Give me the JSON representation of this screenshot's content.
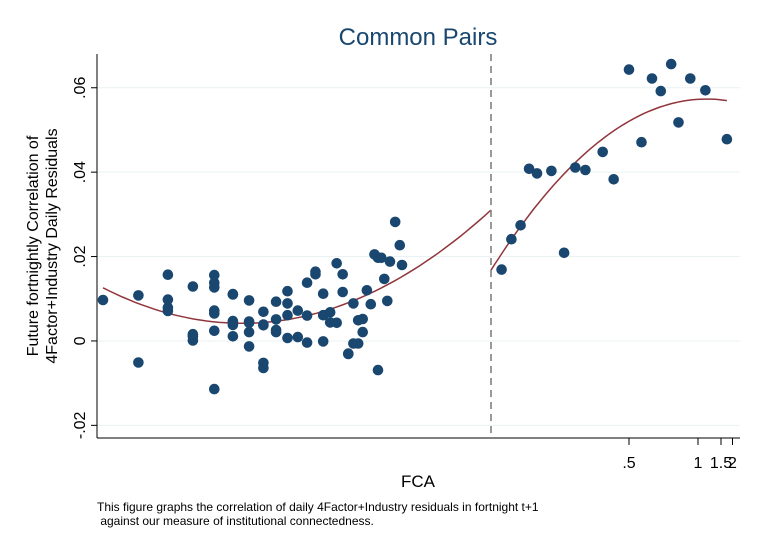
{
  "chart_data": {
    "type": "scatter",
    "title": "Common Pairs",
    "xlabel": "FCA",
    "ylabel_lines": [
      "Future fortnightly Correlation of",
      "4Factor+Industry Daily Residuals"
    ],
    "y_ticks": [
      -0.02,
      0,
      0.02,
      0.04,
      0.06
    ],
    "y_tick_labels": [
      "-.02",
      "0",
      ".02",
      ".04",
      ".06"
    ],
    "ylim": [
      -0.023,
      0.068
    ],
    "x_scale": "reciprocal",
    "x_ticks": [
      0.5,
      1,
      1.5,
      2
    ],
    "x_tick_labels": [
      ".5",
      "1",
      "1.5",
      "2"
    ],
    "threshold_x": 0.25,
    "grid": true,
    "legend": "none",
    "colors": {
      "points": "#1a476f",
      "fit": "#90353b",
      "threshold": "#808080",
      "grid": "#eaf2f3",
      "title": "#1a476f"
    },
    "points": [
      {
        "x": 0.001,
        "y": 0.0097
      },
      {
        "x": 0.0011,
        "y": 0.0108
      },
      {
        "x": 0.0011,
        "y": -0.0051
      },
      {
        "x": 0.0012,
        "y": 0.0157
      },
      {
        "x": 0.0012,
        "y": 0.0098
      },
      {
        "x": 0.0012,
        "y": 0.0071
      },
      {
        "x": 0.0012,
        "y": 0.0079
      },
      {
        "x": 0.0013,
        "y": 0.0129
      },
      {
        "x": 0.0013,
        "y": 0.0001
      },
      {
        "x": 0.0013,
        "y": 0.0011
      },
      {
        "x": 0.0013,
        "y": 0.0016
      },
      {
        "x": 0.0014,
        "y": 0.0138
      },
      {
        "x": 0.0014,
        "y": 0.0156
      },
      {
        "x": 0.0014,
        "y": 0.0127
      },
      {
        "x": 0.0014,
        "y": 0.0024
      },
      {
        "x": 0.0014,
        "y": 0.0072
      },
      {
        "x": 0.0014,
        "y": 0.0065
      },
      {
        "x": 0.0015,
        "y": 0.0047
      },
      {
        "x": 0.0015,
        "y": 0.011
      },
      {
        "x": 0.0015,
        "y": 0.0111
      },
      {
        "x": 0.0014,
        "y": -0.0114
      },
      {
        "x": 0.0015,
        "y": 0.0045
      },
      {
        "x": 0.0015,
        "y": 0.0011
      },
      {
        "x": 0.0015,
        "y": 0.0038
      },
      {
        "x": 0.0016,
        "y": 0.0046
      },
      {
        "x": 0.0016,
        "y": 0.0096
      },
      {
        "x": 0.0016,
        "y": 0.0021
      },
      {
        "x": 0.0016,
        "y": 0.0043
      },
      {
        "x": 0.0016,
        "y": -0.0013
      },
      {
        "x": 0.0017,
        "y": 0.0069
      },
      {
        "x": 0.0017,
        "y": -0.0052
      },
      {
        "x": 0.0017,
        "y": -0.0064
      },
      {
        "x": 0.0017,
        "y": 0.0037
      },
      {
        "x": 0.0017,
        "y": 0.0039
      },
      {
        "x": 0.0018,
        "y": 0.0093
      },
      {
        "x": 0.0018,
        "y": 0.0021
      },
      {
        "x": 0.0018,
        "y": 0.0026
      },
      {
        "x": 0.0018,
        "y": 0.0051
      },
      {
        "x": 0.0019,
        "y": 0.0118
      },
      {
        "x": 0.0019,
        "y": 0.0089
      },
      {
        "x": 0.0019,
        "y": 0.0061
      },
      {
        "x": 0.0019,
        "y": 0.0007
      },
      {
        "x": 0.002,
        "y": 0.0009
      },
      {
        "x": 0.002,
        "y": 0.0072
      },
      {
        "x": 0.0021,
        "y": -0.0004
      },
      {
        "x": 0.0021,
        "y": 0.0138
      },
      {
        "x": 0.0021,
        "y": 0.006
      },
      {
        "x": 0.0022,
        "y": 0.0164
      },
      {
        "x": 0.0022,
        "y": 0.0158
      },
      {
        "x": 0.0023,
        "y": 0.0112
      },
      {
        "x": 0.0023,
        "y": -0.0001
      },
      {
        "x": 0.0023,
        "y": 0.0061
      },
      {
        "x": 0.0024,
        "y": 0.0068
      },
      {
        "x": 0.0024,
        "y": 0.0044
      },
      {
        "x": 0.0025,
        "y": 0.0184
      },
      {
        "x": 0.0025,
        "y": 0.0043
      },
      {
        "x": 0.0026,
        "y": 0.0158
      },
      {
        "x": 0.0026,
        "y": 0.0116
      },
      {
        "x": 0.0027,
        "y": -0.0031
      },
      {
        "x": 0.0027,
        "y": -0.003
      },
      {
        "x": 0.0028,
        "y": 0.0089
      },
      {
        "x": 0.0028,
        "y": -0.0006
      },
      {
        "x": 0.0029,
        "y": -0.0006
      },
      {
        "x": 0.0029,
        "y": 0.0049
      },
      {
        "x": 0.003,
        "y": 0.0052
      },
      {
        "x": 0.003,
        "y": 0.0021
      },
      {
        "x": 0.0031,
        "y": 0.012
      },
      {
        "x": 0.0032,
        "y": 0.0087
      },
      {
        "x": 0.0033,
        "y": 0.0205
      },
      {
        "x": 0.0034,
        "y": 0.0197
      },
      {
        "x": 0.0034,
        "y": -0.0069
      },
      {
        "x": 0.0035,
        "y": 0.0197
      },
      {
        "x": 0.0036,
        "y": 0.0147
      },
      {
        "x": 0.0037,
        "y": 0.0095
      },
      {
        "x": 0.0038,
        "y": 0.0188
      },
      {
        "x": 0.004,
        "y": 0.0282
      },
      {
        "x": 0.0042,
        "y": 0.0227
      },
      {
        "x": 0.0043,
        "y": 0.018
      },
      {
        "x": 0.26,
        "y": 0.0169
      },
      {
        "x": 0.27,
        "y": 0.0241
      },
      {
        "x": 0.28,
        "y": 0.0274
      },
      {
        "x": 0.29,
        "y": 0.0408
      },
      {
        "x": 0.3,
        "y": 0.0397
      },
      {
        "x": 0.32,
        "y": 0.0403
      },
      {
        "x": 0.34,
        "y": 0.0209
      },
      {
        "x": 0.36,
        "y": 0.0411
      },
      {
        "x": 0.38,
        "y": 0.0405
      },
      {
        "x": 0.42,
        "y": 0.0448
      },
      {
        "x": 0.45,
        "y": 0.0383
      },
      {
        "x": 0.5,
        "y": 0.0643
      },
      {
        "x": 0.55,
        "y": 0.0471
      },
      {
        "x": 0.6,
        "y": 0.0622
      },
      {
        "x": 0.65,
        "y": 0.0592
      },
      {
        "x": 0.72,
        "y": 0.0656
      },
      {
        "x": 0.78,
        "y": 0.0518
      },
      {
        "x": 0.9,
        "y": 0.0622
      },
      {
        "x": 1.12,
        "y": 0.0594
      },
      {
        "x": 1.72,
        "y": 0.0478
      }
    ]
  },
  "caption": {
    "line1": "This figure graphs the correlation of daily 4Factor+Industry residuals in fortnight t+1",
    "line2": " against our measure of institutional connectedness."
  }
}
